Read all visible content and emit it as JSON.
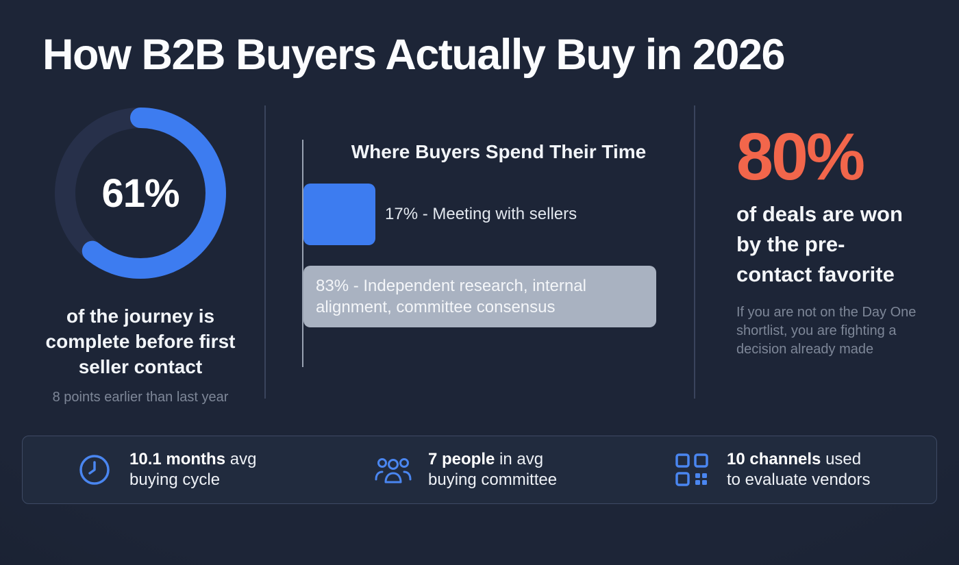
{
  "title": "How B2B Buyers Actually Buy in 2026",
  "colors": {
    "background": "#1d2537",
    "accent_blue": "#3d7cf0",
    "accent_orange": "#f2664b",
    "bar_gray": "#a9b2c1",
    "donut_track": "#27304a",
    "muted_text": "#7e8798"
  },
  "donut": {
    "center_label": "61%",
    "description": "of the journey is complete before first seller contact",
    "note": "8 points earlier than last year"
  },
  "time_chart": {
    "title": "Where Buyers Spend Their Time",
    "bars": [
      {
        "value": 17,
        "label": "17% - Meeting with sellers",
        "color": "#3d7cf0",
        "label_placement": "outside"
      },
      {
        "value": 83,
        "label": "83% - Independent research, internal alignment, committee consensus",
        "color": "#a9b2c1",
        "label_placement": "inside"
      }
    ]
  },
  "highlight": {
    "percent": "80%",
    "description": "of deals are won by the pre-contact favorite",
    "note": "If you are not on the Day One shortlist, you are fighting a decision already made"
  },
  "footer": {
    "stats": [
      {
        "icon": "clock-icon",
        "bold": "10.1 months",
        "line1_rest": " avg",
        "line2": "buying cycle"
      },
      {
        "icon": "people-icon",
        "bold": "7 people",
        "line1_rest": " in avg",
        "line2": "buying committee"
      },
      {
        "icon": "channels-icon",
        "bold": "10 channels",
        "line1_rest": " used",
        "line2": "to evaluate vendors"
      }
    ]
  },
  "chart_data": [
    {
      "type": "pie",
      "subtype": "donut",
      "title": "61% of the journey is complete before first seller contact",
      "labels": [
        "Journey complete before first seller contact",
        "Remaining"
      ],
      "values": [
        61,
        39
      ],
      "colors": [
        "#3d7cf0",
        "#27304a"
      ],
      "center_label": "61%"
    },
    {
      "type": "bar",
      "orientation": "horizontal",
      "title": "Where Buyers Spend Their Time",
      "categories": [
        "Meeting with sellers",
        "Independent research, internal alignment, committee consensus"
      ],
      "values": [
        17,
        83
      ],
      "unit": "%",
      "xlim": [
        0,
        100
      ],
      "colors": [
        "#3d7cf0",
        "#a9b2c1"
      ],
      "legend": false,
      "grid": false
    }
  ]
}
